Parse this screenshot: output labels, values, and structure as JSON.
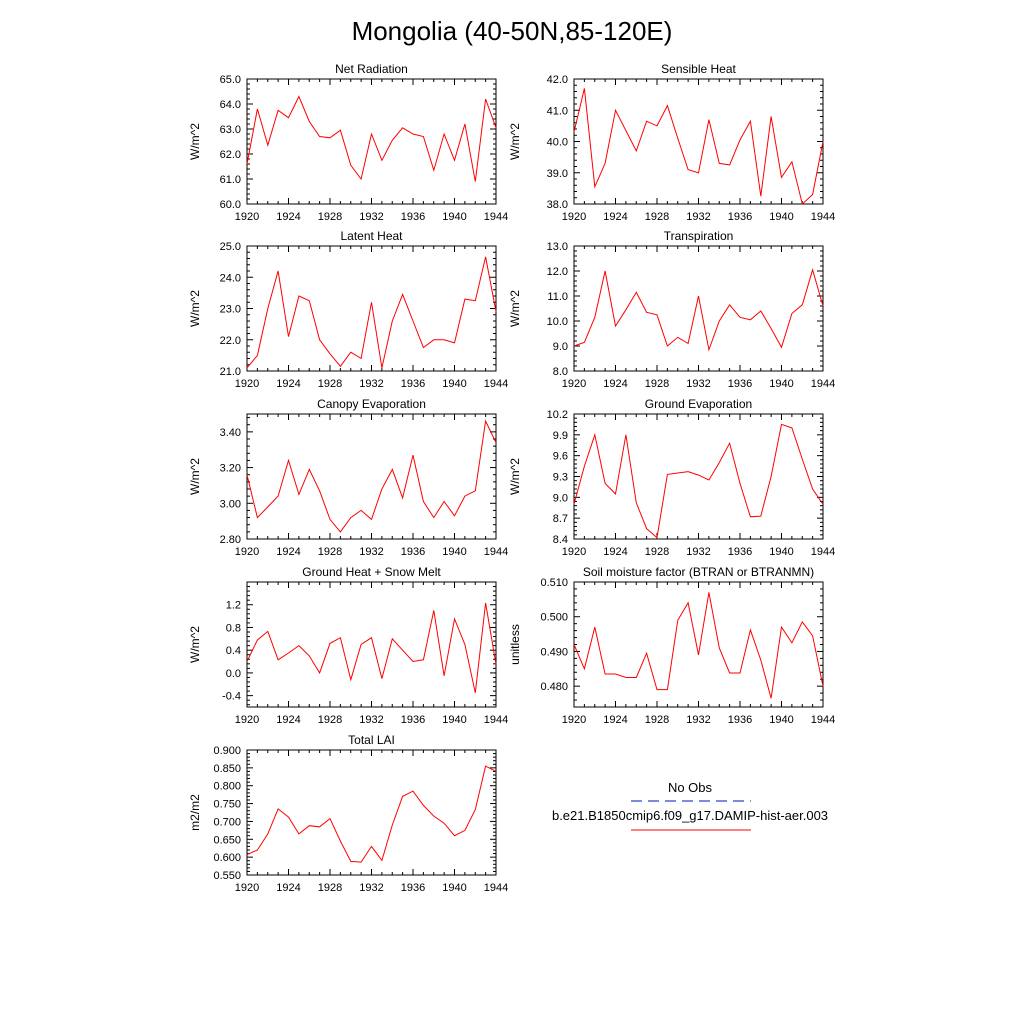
{
  "figure": {
    "title": "Mongolia (40-50N,85-120E)",
    "legend": {
      "obs_label": "No Obs",
      "obs_color": "#3344cc",
      "model_label": "b.e21.B1850cmip6.f09_g17.DAMIP-hist-aer.003",
      "model_color": "#ff0000"
    }
  },
  "chart_data": [
    {
      "type": "line",
      "title": "Net Radiation",
      "ylabel": "W/m^2",
      "x": [
        1920,
        1921,
        1922,
        1923,
        1924,
        1925,
        1926,
        1927,
        1928,
        1929,
        1930,
        1931,
        1932,
        1933,
        1934,
        1935,
        1936,
        1937,
        1938,
        1939,
        1940,
        1941,
        1942,
        1943,
        1944
      ],
      "values": [
        61.6,
        63.8,
        62.35,
        63.75,
        63.45,
        64.3,
        63.3,
        62.7,
        62.65,
        62.95,
        61.55,
        61.0,
        62.8,
        61.75,
        62.55,
        63.05,
        62.8,
        62.7,
        61.35,
        62.8,
        61.75,
        63.2,
        60.9,
        64.2,
        63.05
      ],
      "xlim": [
        1920,
        1944
      ],
      "ylim": [
        60,
        65
      ],
      "xticks": [
        "1920",
        "1924",
        "1928",
        "1932",
        "1936",
        "1940",
        "1944"
      ],
      "yticks": [
        "60.0",
        "61.0",
        "62.0",
        "63.0",
        "64.0",
        "65.0"
      ]
    },
    {
      "type": "line",
      "title": "Sensible Heat",
      "ylabel": "W/m^2",
      "x": [
        1920,
        1921,
        1922,
        1923,
        1924,
        1925,
        1926,
        1927,
        1928,
        1929,
        1930,
        1931,
        1932,
        1933,
        1934,
        1935,
        1936,
        1937,
        1938,
        1939,
        1940,
        1941,
        1942,
        1943,
        1944
      ],
      "values": [
        40.3,
        41.7,
        38.55,
        39.3,
        41.0,
        40.35,
        39.7,
        40.65,
        40.5,
        41.15,
        40.1,
        39.1,
        39.0,
        40.7,
        39.3,
        39.25,
        40.05,
        40.65,
        38.25,
        40.8,
        38.85,
        39.35,
        38.0,
        38.3,
        40.0
      ],
      "xlim": [
        1920,
        1944
      ],
      "ylim": [
        38,
        42
      ],
      "xticks": [
        "1920",
        "1924",
        "1928",
        "1932",
        "1936",
        "1940",
        "1944"
      ],
      "yticks": [
        "38.0",
        "39.0",
        "40.0",
        "41.0",
        "42.0"
      ]
    },
    {
      "type": "line",
      "title": "Latent Heat",
      "ylabel": "W/m^2",
      "x": [
        1920,
        1921,
        1922,
        1923,
        1924,
        1925,
        1926,
        1927,
        1928,
        1929,
        1930,
        1931,
        1932,
        1933,
        1934,
        1935,
        1936,
        1937,
        1938,
        1939,
        1940,
        1941,
        1942,
        1943,
        1944
      ],
      "values": [
        21.1,
        21.5,
        23.0,
        24.2,
        22.1,
        23.4,
        23.25,
        22.0,
        21.55,
        21.15,
        21.6,
        21.4,
        23.2,
        21.1,
        22.6,
        23.45,
        22.6,
        21.75,
        22.0,
        22.0,
        21.9,
        23.3,
        23.25,
        24.65,
        22.9
      ],
      "xlim": [
        1920,
        1944
      ],
      "ylim": [
        21,
        25
      ],
      "xticks": [
        "1920",
        "1924",
        "1928",
        "1932",
        "1936",
        "1940",
        "1944"
      ],
      "yticks": [
        "21.0",
        "22.0",
        "23.0",
        "24.0",
        "25.0"
      ]
    },
    {
      "type": "line",
      "title": "Transpiration",
      "ylabel": "W/m^2",
      "x": [
        1920,
        1921,
        1922,
        1923,
        1924,
        1925,
        1926,
        1927,
        1928,
        1929,
        1930,
        1931,
        1932,
        1933,
        1934,
        1935,
        1936,
        1937,
        1938,
        1939,
        1940,
        1941,
        1942,
        1943,
        1944
      ],
      "values": [
        9.0,
        9.15,
        10.15,
        12.0,
        9.8,
        10.45,
        11.15,
        10.35,
        10.25,
        9.0,
        9.35,
        9.1,
        11.0,
        8.85,
        10.0,
        10.65,
        10.15,
        10.05,
        10.4,
        9.7,
        8.95,
        10.3,
        10.65,
        12.05,
        10.6
      ],
      "xlim": [
        1920,
        1944
      ],
      "ylim": [
        8,
        13
      ],
      "xticks": [
        "1920",
        "1924",
        "1928",
        "1932",
        "1936",
        "1940",
        "1944"
      ],
      "yticks": [
        "8.0",
        "9.0",
        "10.0",
        "11.0",
        "12.0",
        "13.0"
      ]
    },
    {
      "type": "line",
      "title": "Canopy Evaporation",
      "ylabel": "W/m^2",
      "x": [
        1920,
        1921,
        1922,
        1923,
        1924,
        1925,
        1926,
        1927,
        1928,
        1929,
        1930,
        1931,
        1932,
        1933,
        1934,
        1935,
        1936,
        1937,
        1938,
        1939,
        1940,
        1941,
        1942,
        1943,
        1944
      ],
      "values": [
        3.16,
        2.92,
        2.98,
        3.04,
        3.24,
        3.05,
        3.19,
        3.07,
        2.91,
        2.84,
        2.92,
        2.96,
        2.91,
        3.08,
        3.19,
        3.03,
        3.27,
        3.01,
        2.92,
        3.01,
        2.93,
        3.04,
        3.07,
        3.46,
        3.34
      ],
      "xlim": [
        1920,
        1944
      ],
      "ylim": [
        2.8,
        3.5
      ],
      "xticks": [
        "1920",
        "1924",
        "1928",
        "1932",
        "1936",
        "1940",
        "1944"
      ],
      "yticks": [
        "2.80",
        "3.00",
        "3.20",
        "3.40"
      ]
    },
    {
      "type": "line",
      "title": "Ground Evaporation",
      "ylabel": "W/m^2",
      "x": [
        1920,
        1921,
        1922,
        1923,
        1924,
        1925,
        1926,
        1927,
        1928,
        1929,
        1930,
        1931,
        1932,
        1933,
        1934,
        1935,
        1936,
        1937,
        1938,
        1939,
        1940,
        1941,
        1942,
        1943,
        1944
      ],
      "values": [
        8.9,
        9.45,
        9.9,
        9.2,
        9.05,
        9.9,
        8.92,
        8.55,
        8.42,
        9.33,
        9.35,
        9.37,
        9.32,
        9.25,
        9.5,
        9.78,
        9.2,
        8.72,
        8.73,
        9.3,
        10.05,
        10.0,
        9.55,
        9.12,
        8.9
      ],
      "xlim": [
        1920,
        1944
      ],
      "ylim": [
        8.4,
        10.2
      ],
      "xticks": [
        "1920",
        "1924",
        "1928",
        "1932",
        "1936",
        "1940",
        "1944"
      ],
      "yticks": [
        "8.4",
        "8.7",
        "9.0",
        "9.3",
        "9.6",
        "9.9",
        "10.2"
      ]
    },
    {
      "type": "line",
      "title": "Ground Heat + Snow Melt",
      "ylabel": "W/m^2",
      "x": [
        1920,
        1921,
        1922,
        1923,
        1924,
        1925,
        1926,
        1927,
        1928,
        1929,
        1930,
        1931,
        1932,
        1933,
        1934,
        1935,
        1936,
        1937,
        1938,
        1939,
        1940,
        1941,
        1942,
        1943,
        1944
      ],
      "values": [
        0.2,
        0.58,
        0.73,
        0.23,
        0.35,
        0.48,
        0.3,
        0.0,
        0.52,
        0.62,
        -0.12,
        0.5,
        0.62,
        -0.1,
        0.6,
        0.4,
        0.2,
        0.23,
        1.1,
        -0.05,
        0.95,
        0.5,
        -0.35,
        1.23,
        0.15
      ],
      "xlim": [
        1920,
        1944
      ],
      "ylim": [
        -0.6,
        1.6
      ],
      "xticks": [
        "1920",
        "1924",
        "1928",
        "1932",
        "1936",
        "1940",
        "1944"
      ],
      "yticks": [
        "-0.4",
        "0.0",
        "0.4",
        "0.8",
        "1.2"
      ]
    },
    {
      "type": "line",
      "title": "Soil moisture factor (BTRAN or BTRANMN)",
      "ylabel": "unitless",
      "x": [
        1920,
        1921,
        1922,
        1923,
        1924,
        1925,
        1926,
        1927,
        1928,
        1929,
        1930,
        1931,
        1932,
        1933,
        1934,
        1935,
        1936,
        1937,
        1938,
        1939,
        1940,
        1941,
        1942,
        1943,
        1944
      ],
      "values": [
        0.492,
        0.485,
        0.497,
        0.4835,
        0.4835,
        0.4825,
        0.4825,
        0.4895,
        0.479,
        0.479,
        0.499,
        0.504,
        0.489,
        0.507,
        0.491,
        0.4838,
        0.4838,
        0.4962,
        0.4875,
        0.4765,
        0.497,
        0.4925,
        0.4985,
        0.4945,
        0.48
      ],
      "xlim": [
        1920,
        1944
      ],
      "ylim": [
        0.474,
        0.51
      ],
      "xticks": [
        "1920",
        "1924",
        "1928",
        "1932",
        "1936",
        "1940",
        "1944"
      ],
      "yticks": [
        "0.480",
        "0.490",
        "0.500",
        "0.510"
      ]
    },
    {
      "type": "line",
      "title": "Total LAI",
      "ylabel": "m2/m2",
      "x": [
        1920,
        1921,
        1922,
        1923,
        1924,
        1925,
        1926,
        1927,
        1928,
        1929,
        1930,
        1931,
        1932,
        1933,
        1934,
        1935,
        1936,
        1937,
        1938,
        1939,
        1940,
        1941,
        1942,
        1943,
        1944
      ],
      "values": [
        0.607,
        0.62,
        0.665,
        0.735,
        0.712,
        0.665,
        0.688,
        0.685,
        0.708,
        0.645,
        0.588,
        0.586,
        0.63,
        0.591,
        0.69,
        0.77,
        0.785,
        0.745,
        0.715,
        0.695,
        0.66,
        0.675,
        0.733,
        0.855,
        0.84
      ],
      "xlim": [
        1920,
        1944
      ],
      "ylim": [
        0.55,
        0.9
      ],
      "xticks": [
        "1920",
        "1924",
        "1928",
        "1932",
        "1936",
        "1940",
        "1944"
      ],
      "yticks": [
        "0.550",
        "0.600",
        "0.650",
        "0.700",
        "0.750",
        "0.800",
        "0.850",
        "0.900"
      ]
    }
  ]
}
